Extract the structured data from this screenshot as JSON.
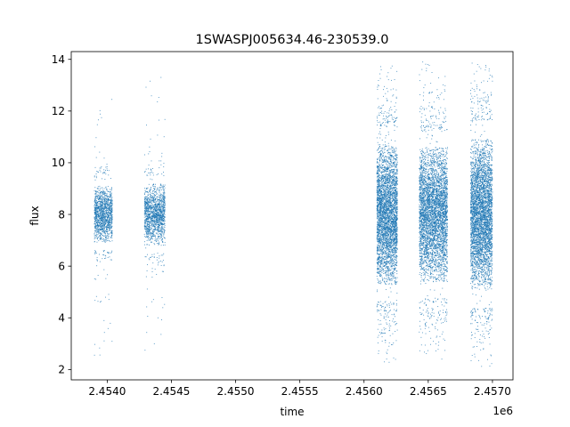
{
  "chart_data": {
    "type": "scatter",
    "title": "1SWASPJ005634.46-230539.0",
    "xlabel": "time",
    "ylabel": "flux",
    "x_offset_label": "1e6",
    "xlim": [
      2.45372,
      2.45716
    ],
    "ylim": [
      1.6,
      14.3
    ],
    "x_ticks": [
      2.454,
      2.4545,
      2.455,
      2.4555,
      2.456,
      2.4565,
      2.457
    ],
    "x_tick_labels": [
      "2.4540",
      "2.4545",
      "2.4550",
      "2.4555",
      "2.4560",
      "2.4565",
      "2.4570"
    ],
    "y_ticks": [
      2,
      4,
      6,
      8,
      10,
      12,
      14
    ],
    "y_tick_labels": [
      "2",
      "4",
      "6",
      "8",
      "10",
      "12",
      "14"
    ],
    "grid": false,
    "marker_color": "#1f77b4",
    "segments": [
      {
        "x_start": 2.4539,
        "x_end": 2.45404,
        "center": 8.0,
        "spread": 0.55,
        "y_min": 2.5,
        "y_max": 12.5,
        "points": 1400
      },
      {
        "x_start": 2.45429,
        "x_end": 2.45445,
        "center": 8.0,
        "spread": 0.6,
        "y_min": 2.6,
        "y_max": 13.6,
        "points": 1500
      },
      {
        "x_start": 2.4561,
        "x_end": 2.45626,
        "center": 8.0,
        "spread": 1.35,
        "y_min": 2.2,
        "y_max": 13.8,
        "points": 4000
      },
      {
        "x_start": 2.45643,
        "x_end": 2.45665,
        "center": 8.0,
        "spread": 1.3,
        "y_min": 2.3,
        "y_max": 13.9,
        "points": 4500
      },
      {
        "x_start": 2.45683,
        "x_end": 2.457,
        "center": 8.0,
        "spread": 1.45,
        "y_min": 2.1,
        "y_max": 13.9,
        "points": 4300
      }
    ]
  }
}
